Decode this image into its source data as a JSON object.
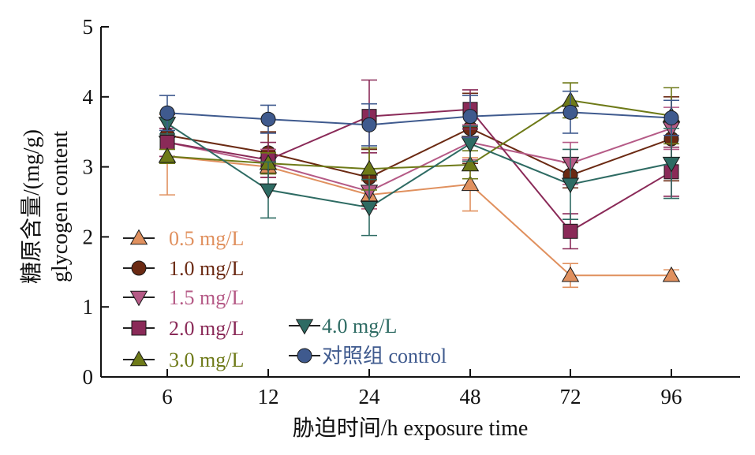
{
  "chart_data": {
    "type": "line",
    "title": "",
    "xlabel": "胁迫时间/h exposure time",
    "ylabel_lines": [
      "糖原含量/(mg/g)",
      "glycogen content"
    ],
    "categories": [
      "6",
      "12",
      "24",
      "48",
      "72",
      "96"
    ],
    "ylim": [
      0,
      5
    ],
    "yticks": [
      "0",
      "1",
      "2",
      "3",
      "4",
      "5"
    ],
    "grid": false,
    "legend_position": "left-bottom",
    "series": [
      {
        "name": "0.5 mg/L",
        "color": "#e0905e",
        "marker": "triangle-up",
        "values": [
          3.15,
          3.0,
          2.6,
          2.75,
          1.45,
          1.45
        ],
        "errors": [
          0.55,
          0.15,
          0.2,
          0.38,
          0.17,
          0.08
        ]
      },
      {
        "name": "1.0 mg/L",
        "color": "#6b2a13",
        "marker": "circle",
        "values": [
          3.45,
          3.2,
          2.85,
          3.55,
          2.88,
          3.4
        ],
        "errors": [
          0.3,
          0.3,
          0.4,
          0.5,
          0.18,
          0.6
        ]
      },
      {
        "name": "1.5 mg/L",
        "color": "#b55a86",
        "marker": "triangle-down",
        "values": [
          3.35,
          3.05,
          2.65,
          3.35,
          3.05,
          3.55
        ],
        "errors": [
          0.2,
          0.2,
          0.25,
          0.25,
          0.3,
          0.3
        ]
      },
      {
        "name": "2.0 mg/L",
        "color": "#8a2a58",
        "marker": "square",
        "values": [
          3.35,
          3.1,
          3.72,
          3.82,
          2.08,
          2.93
        ],
        "errors": [
          0.2,
          0.25,
          0.52,
          0.28,
          0.25,
          0.35
        ]
      },
      {
        "name": "3.0 mg/L",
        "color": "#6e7a18",
        "marker": "triangle-up",
        "values": [
          3.15,
          3.05,
          2.97,
          3.03,
          3.95,
          3.73
        ],
        "errors": [
          0.1,
          0.15,
          0.3,
          0.2,
          0.25,
          0.4
        ]
      },
      {
        "name": "4.0 mg/L",
        "color": "#2e6b63",
        "marker": "triangle-down",
        "values": [
          3.62,
          2.67,
          2.42,
          3.33,
          2.75,
          3.05
        ],
        "errors": [
          0.15,
          0.4,
          0.4,
          0.25,
          0.5,
          0.5
        ]
      },
      {
        "name": "对照组 control",
        "color": "#3f5a8e",
        "marker": "circle",
        "values": [
          3.77,
          3.68,
          3.6,
          3.72,
          3.78,
          3.7
        ],
        "errors": [
          0.25,
          0.2,
          0.3,
          0.3,
          0.3,
          0.25
        ]
      }
    ]
  }
}
